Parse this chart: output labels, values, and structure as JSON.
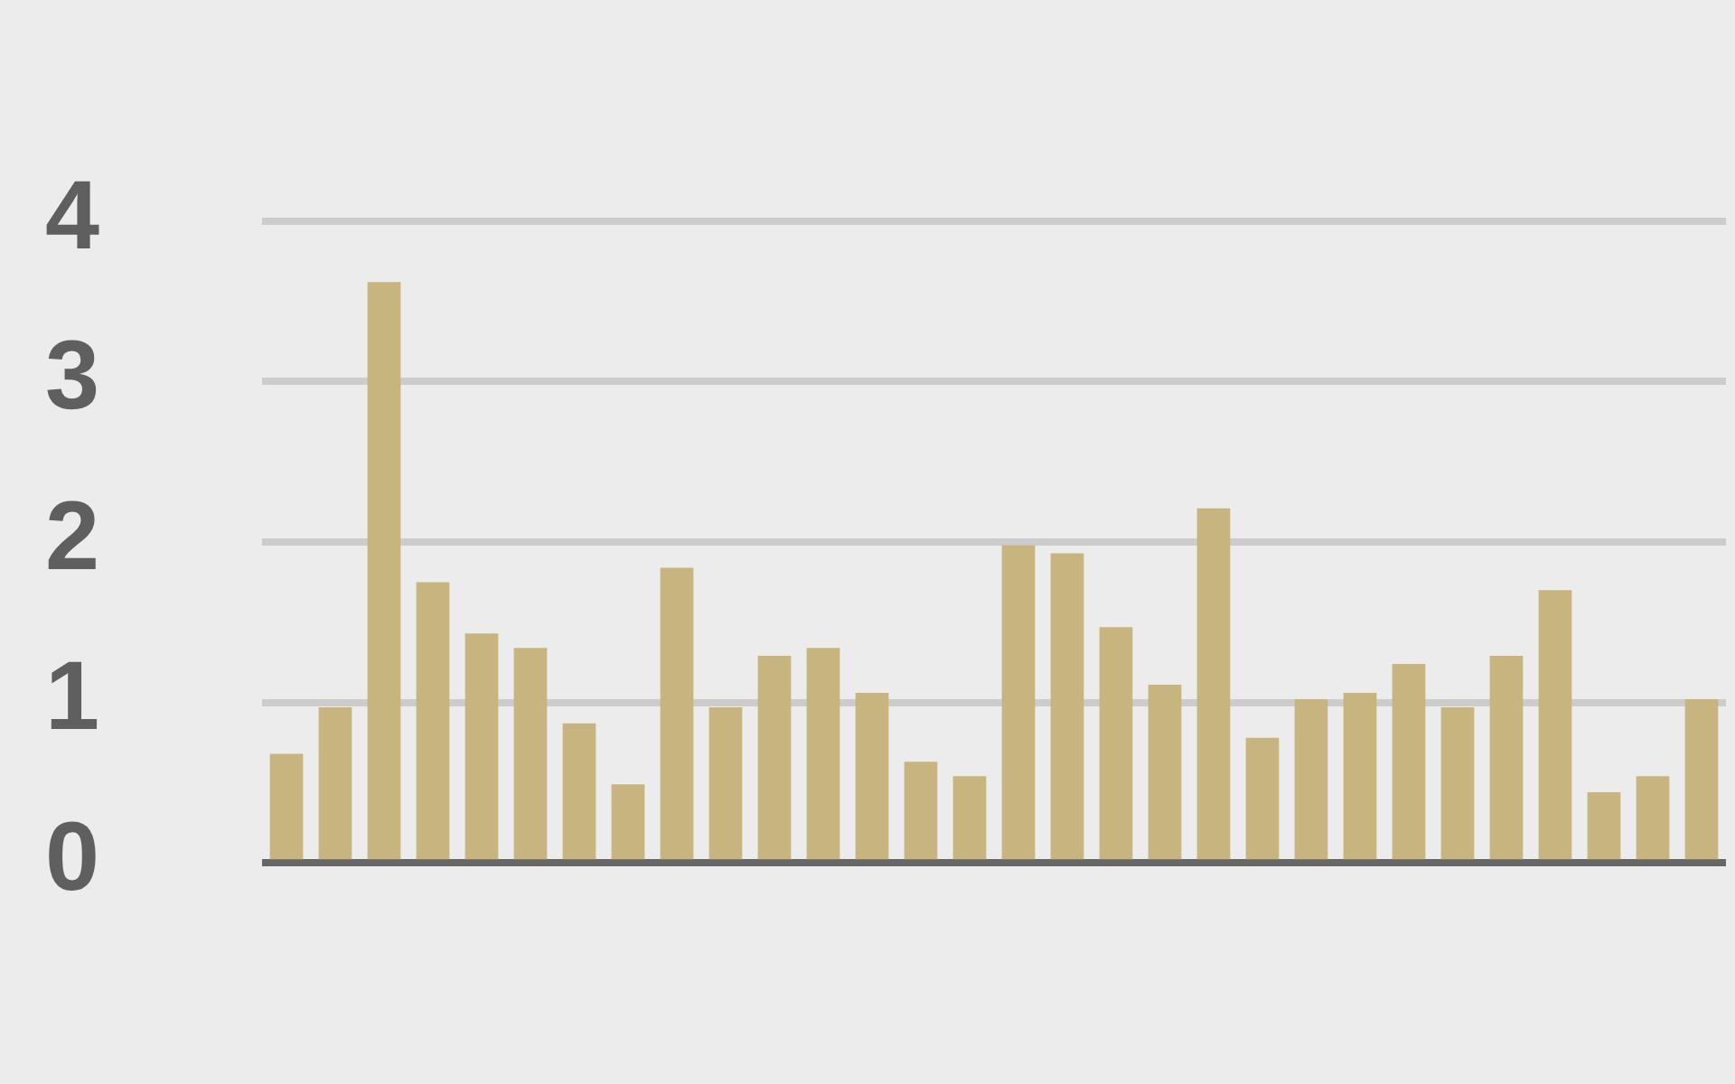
{
  "chart_data": {
    "type": "bar",
    "categories": [
      null,
      null,
      null,
      null,
      null,
      null,
      null,
      null,
      null,
      null,
      null,
      null,
      null,
      null,
      null,
      null,
      null,
      null,
      null,
      null,
      null,
      null,
      null,
      null,
      null,
      null,
      null,
      null,
      null,
      null
    ],
    "values": [
      0.68,
      0.97,
      3.62,
      1.75,
      1.43,
      1.34,
      0.87,
      0.49,
      1.84,
      0.97,
      1.29,
      1.34,
      1.06,
      0.63,
      0.54,
      1.98,
      1.93,
      1.47,
      1.11,
      2.21,
      0.78,
      1.02,
      1.06,
      1.24,
      0.97,
      1.29,
      1.7,
      0.44,
      0.54,
      1.02
    ],
    "color": "#c8b47e",
    "ylim": [
      0,
      4
    ],
    "yticks": [
      0,
      1,
      2,
      3,
      4
    ],
    "grid": "y"
  }
}
